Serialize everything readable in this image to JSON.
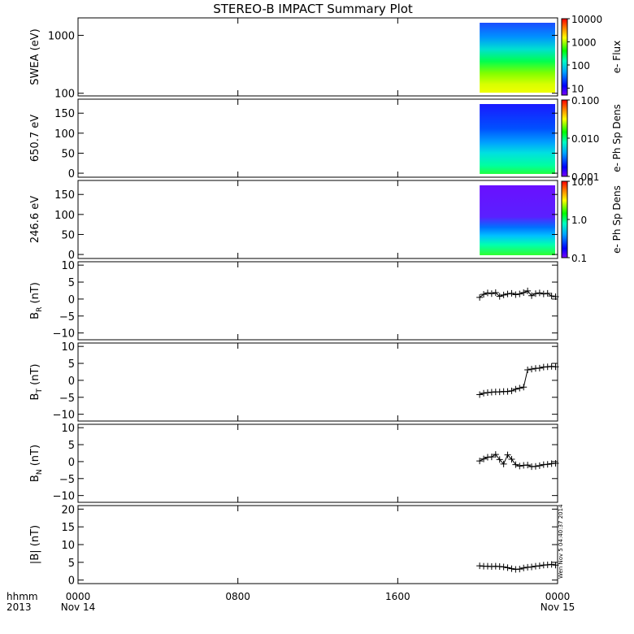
{
  "title": "STEREO-B IMPACT Summary Plot",
  "stamp": "Wen Nov  5 04:40:37 2014",
  "time_axis": {
    "row1_label": "hhmm",
    "row2_label": "2013",
    "ticks": [
      {
        "t": 0,
        "hhmm": "0000",
        "date": "Nov 14"
      },
      {
        "t": 8,
        "hhmm": "0800",
        "date": ""
      },
      {
        "t": 16,
        "hhmm": "1600",
        "date": ""
      },
      {
        "t": 24,
        "hhmm": "0000",
        "date": "Nov 15"
      }
    ],
    "range_hours": [
      0,
      24
    ]
  },
  "chart_data": [
    {
      "type": "heatmap",
      "id": "swea",
      "ylabel": "SWEA (eV)",
      "yscale": "log",
      "ylim": [
        90,
        2000
      ],
      "yticks": [
        {
          "v": 100,
          "label": "100"
        },
        {
          "v": 1000,
          "label": "1000"
        }
      ],
      "data_start_hour": 20.1,
      "cbar": {
        "label": "e- Flux",
        "scale": "log",
        "range": [
          5,
          10000
        ],
        "ticks": [
          {
            "v": 10,
            "label": "10"
          },
          {
            "v": 100,
            "label": "100"
          },
          {
            "v": 1000,
            "label": "1000"
          },
          {
            "v": 10000,
            "label": "10000"
          }
        ]
      }
    },
    {
      "type": "heatmap",
      "id": "pad650",
      "ylabel": "650.7 eV",
      "yscale": "linear",
      "ylim": [
        -10,
        185
      ],
      "yticks": [
        {
          "v": 0,
          "label": "0"
        },
        {
          "v": 50,
          "label": "50"
        },
        {
          "v": 100,
          "label": "100"
        },
        {
          "v": 150,
          "label": "150"
        }
      ],
      "data_start_hour": 20.1,
      "cbar": {
        "label": "e- Ph Sp Dens",
        "scale": "log",
        "range": [
          0.001,
          0.1
        ],
        "ticks": [
          {
            "v": 0.001,
            "label": "0.001"
          },
          {
            "v": 0.01,
            "label": "0.010"
          },
          {
            "v": 0.1,
            "label": "0.100"
          }
        ]
      }
    },
    {
      "type": "heatmap",
      "id": "pad246",
      "ylabel": "246.6 eV",
      "yscale": "linear",
      "ylim": [
        -10,
        185
      ],
      "yticks": [
        {
          "v": 0,
          "label": "0"
        },
        {
          "v": 50,
          "label": "50"
        },
        {
          "v": 100,
          "label": "100"
        },
        {
          "v": 150,
          "label": "150"
        }
      ],
      "data_start_hour": 20.1,
      "cbar": {
        "label": "e- Ph Sp Dens",
        "scale": "log",
        "range": [
          0.1,
          10
        ],
        "ticks": [
          {
            "v": 0.1,
            "label": "0.1"
          },
          {
            "v": 1,
            "label": "1.0"
          },
          {
            "v": 10,
            "label": "10.0"
          }
        ]
      }
    },
    {
      "type": "scatter",
      "id": "br",
      "ylabel": "B",
      "ylabel_sub": "R",
      "ylabel_unit": " (nT)",
      "ylim": [
        -12,
        11
      ],
      "yticks": [
        {
          "v": -10,
          "label": "−10"
        },
        {
          "v": -5,
          "label": "−5"
        },
        {
          "v": 0,
          "label": "0"
        },
        {
          "v": 5,
          "label": "5"
        },
        {
          "v": 10,
          "label": "10"
        }
      ],
      "x": [
        20.1,
        20.3,
        20.5,
        20.7,
        20.9,
        21.1,
        21.3,
        21.5,
        21.7,
        21.9,
        22.1,
        22.3,
        22.5,
        22.7,
        22.9,
        23.1,
        23.3,
        23.5,
        23.7,
        23.9
      ],
      "y": [
        0.5,
        1.4,
        1.8,
        1.6,
        1.9,
        0.8,
        1.2,
        1.5,
        1.7,
        1.3,
        1.5,
        1.9,
        2.4,
        1.0,
        1.6,
        1.8,
        1.5,
        1.7,
        0.9,
        0.7
      ]
    },
    {
      "type": "scatter",
      "id": "bt",
      "ylabel": "B",
      "ylabel_sub": "T",
      "ylabel_unit": " (nT)",
      "ylim": [
        -12,
        11
      ],
      "yticks": [
        {
          "v": -10,
          "label": "−10"
        },
        {
          "v": -5,
          "label": "−5"
        },
        {
          "v": 0,
          "label": "0"
        },
        {
          "v": 5,
          "label": "5"
        },
        {
          "v": 10,
          "label": "10"
        }
      ],
      "x": [
        20.1,
        20.3,
        20.5,
        20.7,
        20.9,
        21.1,
        21.3,
        21.5,
        21.7,
        21.9,
        22.1,
        22.3,
        22.5,
        22.7,
        22.9,
        23.1,
        23.3,
        23.5,
        23.7,
        23.9
      ],
      "y": [
        -4.2,
        -3.8,
        -3.6,
        -3.5,
        -3.4,
        -3.4,
        -3.3,
        -3.3,
        -3.1,
        -2.6,
        -2.3,
        -2.0,
        3.1,
        3.3,
        3.5,
        3.6,
        3.9,
        4.0,
        4.1,
        4.0
      ]
    },
    {
      "type": "scatter",
      "id": "bn",
      "ylabel": "B",
      "ylabel_sub": "N",
      "ylabel_unit": " (nT)",
      "ylim": [
        -12,
        11
      ],
      "yticks": [
        {
          "v": -10,
          "label": "−10"
        },
        {
          "v": -5,
          "label": "−5"
        },
        {
          "v": 0,
          "label": "0"
        },
        {
          "v": 5,
          "label": "5"
        },
        {
          "v": 10,
          "label": "10"
        }
      ],
      "x": [
        20.1,
        20.3,
        20.5,
        20.7,
        20.9,
        21.1,
        21.3,
        21.5,
        21.7,
        21.9,
        22.1,
        22.3,
        22.5,
        22.7,
        22.9,
        23.1,
        23.3,
        23.5,
        23.7,
        23.9
      ],
      "y": [
        0.2,
        0.8,
        1.3,
        1.4,
        2.1,
        0.6,
        -0.7,
        2.0,
        0.7,
        -0.9,
        -1.3,
        -1.1,
        -1.0,
        -1.5,
        -1.4,
        -1.2,
        -0.9,
        -0.8,
        -0.6,
        -0.5
      ]
    },
    {
      "type": "scatter",
      "id": "bmag",
      "ylabel": "|B| (nT)",
      "ylim": [
        -1,
        21
      ],
      "yticks": [
        {
          "v": 0,
          "label": "0"
        },
        {
          "v": 5,
          "label": "5"
        },
        {
          "v": 10,
          "label": "10"
        },
        {
          "v": 15,
          "label": "15"
        },
        {
          "v": 20,
          "label": "20"
        }
      ],
      "x": [
        20.1,
        20.3,
        20.5,
        20.7,
        20.9,
        21.1,
        21.3,
        21.5,
        21.7,
        21.9,
        22.1,
        22.3,
        22.5,
        22.7,
        22.9,
        23.1,
        23.3,
        23.5,
        23.7,
        23.9
      ],
      "y": [
        4.0,
        3.9,
        3.9,
        3.8,
        3.9,
        3.8,
        3.7,
        3.5,
        3.2,
        3.0,
        3.1,
        3.4,
        3.6,
        3.7,
        3.9,
        4.0,
        4.2,
        4.3,
        4.4,
        4.2
      ]
    }
  ]
}
